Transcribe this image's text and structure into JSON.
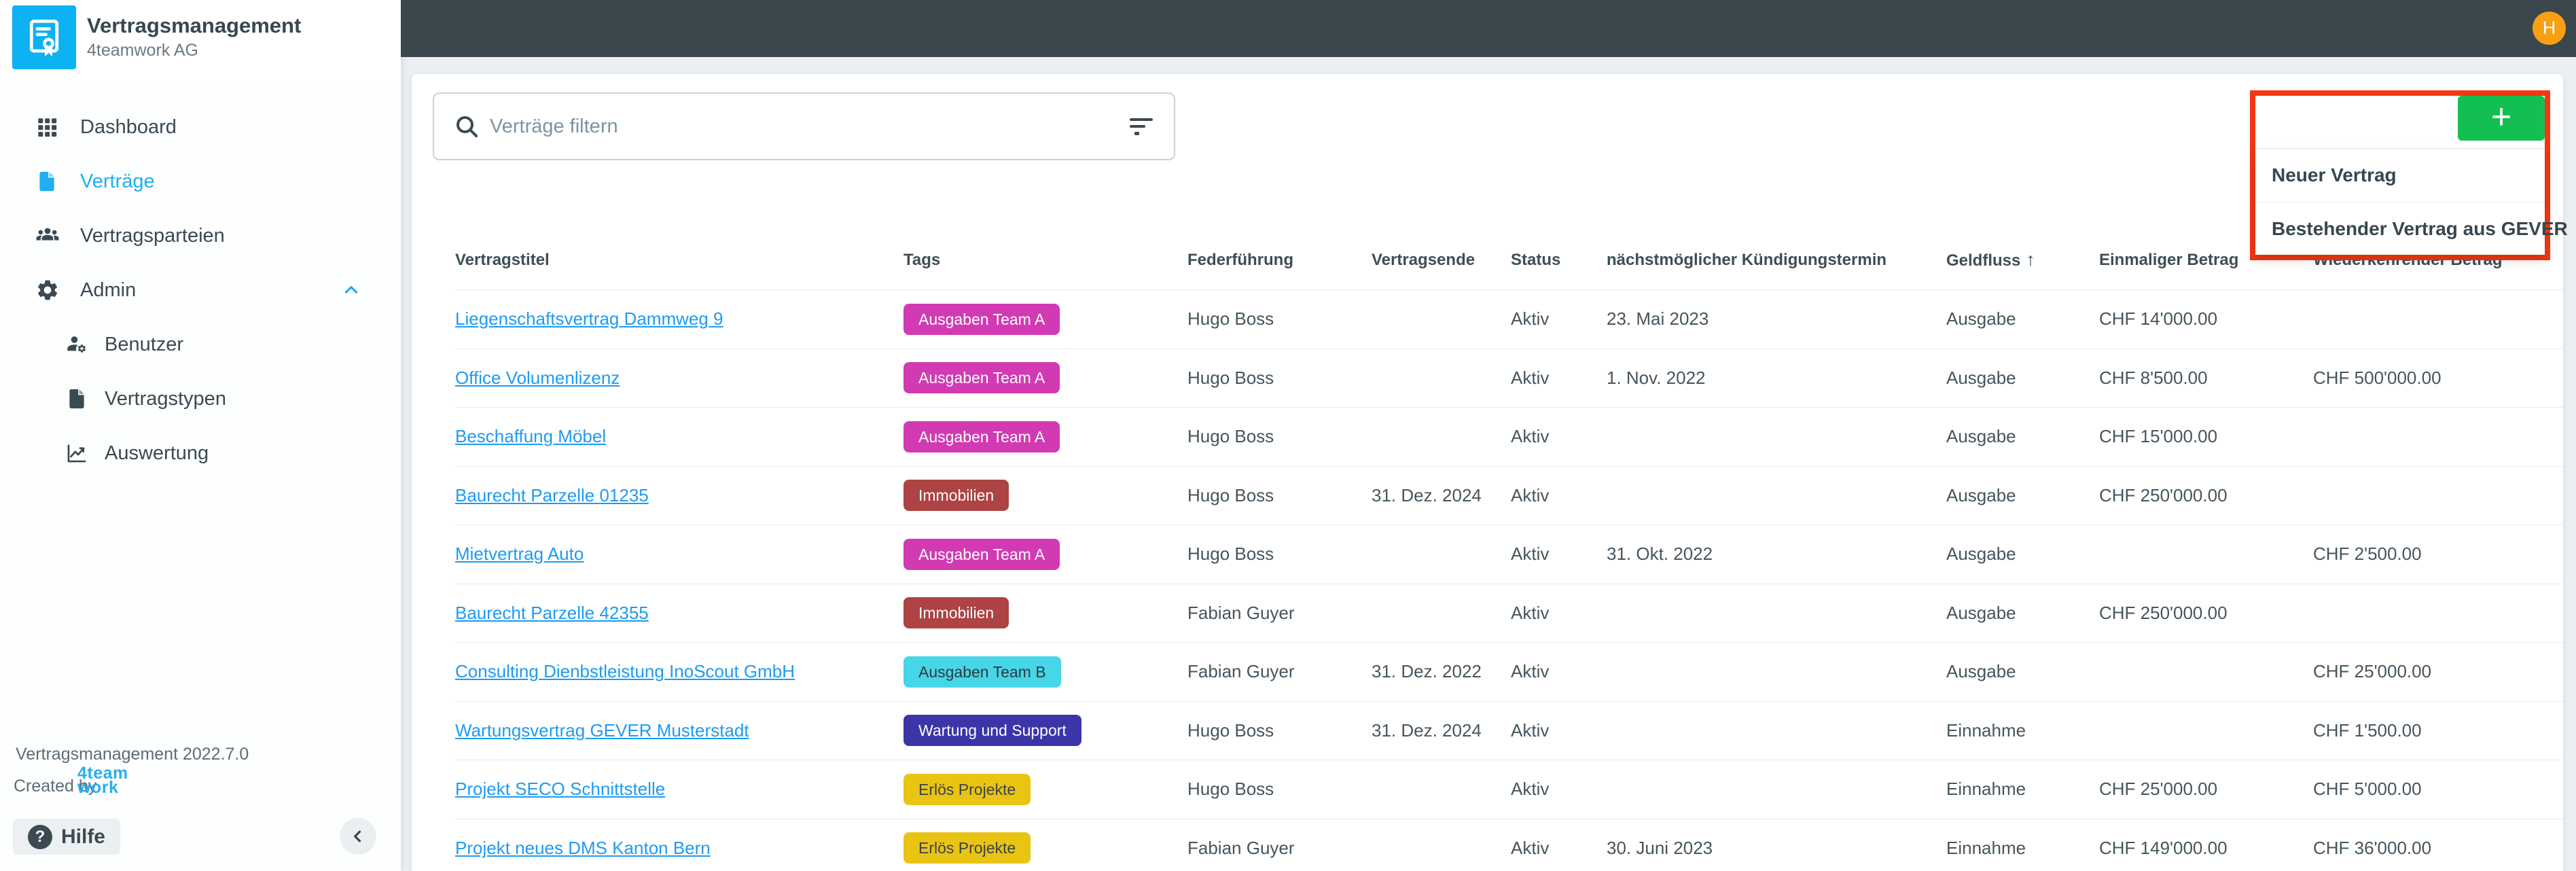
{
  "app": {
    "title": "Vertragsmanagement",
    "subtitle": "4teamwork AG",
    "version": "Vertragsmanagement 2022.7.0",
    "created_by": "Created by",
    "brand_line1": "4team",
    "brand_line2": "work",
    "help_label": "Hilfe",
    "help_icon_glyph": "?",
    "avatar_initial": "H"
  },
  "sidebar": {
    "items": [
      {
        "label": "Dashboard",
        "icon": "dashboard-grid-icon",
        "active": false,
        "sub": false,
        "chevron": false
      },
      {
        "label": "Verträge",
        "icon": "document-icon",
        "active": true,
        "sub": false,
        "chevron": false
      },
      {
        "label": "Vertragsparteien",
        "icon": "people-icon",
        "active": false,
        "sub": false,
        "chevron": false
      },
      {
        "label": "Admin",
        "icon": "gear-icon",
        "active": false,
        "sub": false,
        "chevron": true
      },
      {
        "label": "Benutzer",
        "icon": "user-gear-icon",
        "active": false,
        "sub": true,
        "chevron": false
      },
      {
        "label": "Vertragstypen",
        "icon": "document-icon",
        "active": false,
        "sub": true,
        "chevron": false
      },
      {
        "label": "Auswertung",
        "icon": "chart-icon",
        "active": false,
        "sub": true,
        "chevron": false
      }
    ]
  },
  "search": {
    "placeholder": "Verträge filtern"
  },
  "add_menu": {
    "button_glyph": "+",
    "items": [
      "Neuer Vertrag",
      "Bestehender Vertrag aus GEVER"
    ]
  },
  "table": {
    "columns": [
      {
        "label": "Vertragstitel"
      },
      {
        "label": "Tags"
      },
      {
        "label": "Federführung"
      },
      {
        "label": "Vertragsende"
      },
      {
        "label": "Status"
      },
      {
        "label": "nächstmöglicher Kündigungstermin"
      },
      {
        "label": "Geldfluss",
        "sorted": "asc"
      },
      {
        "label": "Einmaliger Betrag"
      },
      {
        "label": "Wiederkehrender Betrag"
      }
    ],
    "rows": [
      {
        "title": "Liegenschaftsvertrag Dammweg 9",
        "tag": "Ausgaben Team A",
        "lead": "Hugo Boss",
        "end": "",
        "status": "Aktiv",
        "notice": "23. Mai 2023",
        "flow": "Ausgabe",
        "once": "CHF 14'000.00",
        "recurring": ""
      },
      {
        "title": "Office Volumenlizenz",
        "tag": "Ausgaben Team A",
        "lead": "Hugo Boss",
        "end": "",
        "status": "Aktiv",
        "notice": "1. Nov. 2022",
        "flow": "Ausgabe",
        "once": "CHF 8'500.00",
        "recurring": "CHF 500'000.00"
      },
      {
        "title": "Beschaffung Möbel",
        "tag": "Ausgaben Team A",
        "lead": "Hugo Boss",
        "end": "",
        "status": "Aktiv",
        "notice": "",
        "flow": "Ausgabe",
        "once": "CHF 15'000.00",
        "recurring": ""
      },
      {
        "title": "Baurecht Parzelle 01235",
        "tag": "Immobilien",
        "lead": "Hugo Boss",
        "end": "31. Dez. 2024",
        "status": "Aktiv",
        "notice": "",
        "flow": "Ausgabe",
        "once": "CHF 250'000.00",
        "recurring": ""
      },
      {
        "title": "Mietvertrag Auto",
        "tag": "Ausgaben Team A",
        "lead": "Hugo Boss",
        "end": "",
        "status": "Aktiv",
        "notice": "31. Okt. 2022",
        "flow": "Ausgabe",
        "once": "",
        "recurring": "CHF 2'500.00"
      },
      {
        "title": "Baurecht Parzelle 42355",
        "tag": "Immobilien",
        "lead": "Fabian Guyer",
        "end": "",
        "status": "Aktiv",
        "notice": "",
        "flow": "Ausgabe",
        "once": "CHF 250'000.00",
        "recurring": ""
      },
      {
        "title": "Consulting Dienbstleistung InoScout GmbH",
        "tag": "Ausgaben Team B",
        "lead": "Fabian Guyer",
        "end": "31. Dez. 2022",
        "status": "Aktiv",
        "notice": "",
        "flow": "Ausgabe",
        "once": "",
        "recurring": "CHF 25'000.00"
      },
      {
        "title": "Wartungsvertrag GEVER Musterstadt",
        "tag": "Wartung und Support",
        "lead": "Hugo Boss",
        "end": "31. Dez. 2024",
        "status": "Aktiv",
        "notice": "",
        "flow": "Einnahme",
        "once": "",
        "recurring": "CHF 1'500.00"
      },
      {
        "title": "Projekt SECO Schnittstelle",
        "tag": "Erlös Projekte",
        "lead": "Hugo Boss",
        "end": "",
        "status": "Aktiv",
        "notice": "",
        "flow": "Einnahme",
        "once": "CHF 25'000.00",
        "recurring": "CHF 5'000.00"
      },
      {
        "title": "Projekt neues DMS Kanton Bern",
        "tag": "Erlös Projekte",
        "lead": "Fabian Guyer",
        "end": "",
        "status": "Aktiv",
        "notice": "30. Juni 2023",
        "flow": "Einnahme",
        "once": "CHF 149'000.00",
        "recurring": "CHF 36'000.00"
      }
    ],
    "tag_styles": {
      "Ausgaben Team A": {
        "bg": "#D23AB3",
        "fg": "#FFFFFF"
      },
      "Ausgaben Team B": {
        "bg": "#47D5E8",
        "fg": "#2A3B41"
      },
      "Immobilien": {
        "bg": "#AD4343",
        "fg": "#FFFFFF"
      },
      "Wartung und Support": {
        "bg": "#3B35A8",
        "fg": "#FFFFFF"
      },
      "Erlös Projekte": {
        "bg": "#E9C413",
        "fg": "#3A4347"
      }
    }
  },
  "colors": {
    "topbar": "#3C464D",
    "sidebar_active": "#1EB0F2",
    "logo_blue": "#0CB2F2",
    "link_blue": "#1E9BF0",
    "add_button_green": "#13BF50",
    "annotation_red": "#F43711",
    "avatar_orange": "#F7A013",
    "page_background": "#ECEFF2"
  }
}
